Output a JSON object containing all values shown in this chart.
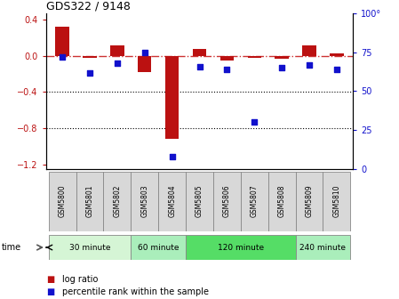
{
  "title": "GDS322 / 9148",
  "samples": [
    "GSM5800",
    "GSM5801",
    "GSM5802",
    "GSM5803",
    "GSM5804",
    "GSM5805",
    "GSM5806",
    "GSM5807",
    "GSM5808",
    "GSM5809",
    "GSM5810"
  ],
  "log_ratio": [
    0.32,
    -0.02,
    0.12,
    -0.18,
    -0.92,
    0.08,
    -0.05,
    -0.02,
    -0.03,
    0.12,
    0.03
  ],
  "percentile": [
    72,
    62,
    68,
    75,
    8,
    66,
    64,
    30,
    65,
    67,
    64
  ],
  "groups": [
    {
      "label": "30 minute",
      "start": 0,
      "end": 3,
      "color": "#d5f5d5"
    },
    {
      "label": "60 minute",
      "start": 3,
      "end": 5,
      "color": "#aaeebb"
    },
    {
      "label": "120 minute",
      "start": 5,
      "end": 9,
      "color": "#55dd66"
    },
    {
      "label": "240 minute",
      "start": 9,
      "end": 11,
      "color": "#aaeebb"
    }
  ],
  "ylim_left": [
    -1.25,
    0.47
  ],
  "ylim_right": [
    0,
    100
  ],
  "yticks_left": [
    -1.2,
    -0.8,
    -0.4,
    0.0,
    0.4
  ],
  "yticks_right": [
    0,
    25,
    50,
    75,
    100
  ],
  "bar_color": "#bb1111",
  "dot_color": "#1111cc",
  "hline_color": "#cc3333",
  "legend_log": "log ratio",
  "legend_pct": "percentile rank within the sample"
}
